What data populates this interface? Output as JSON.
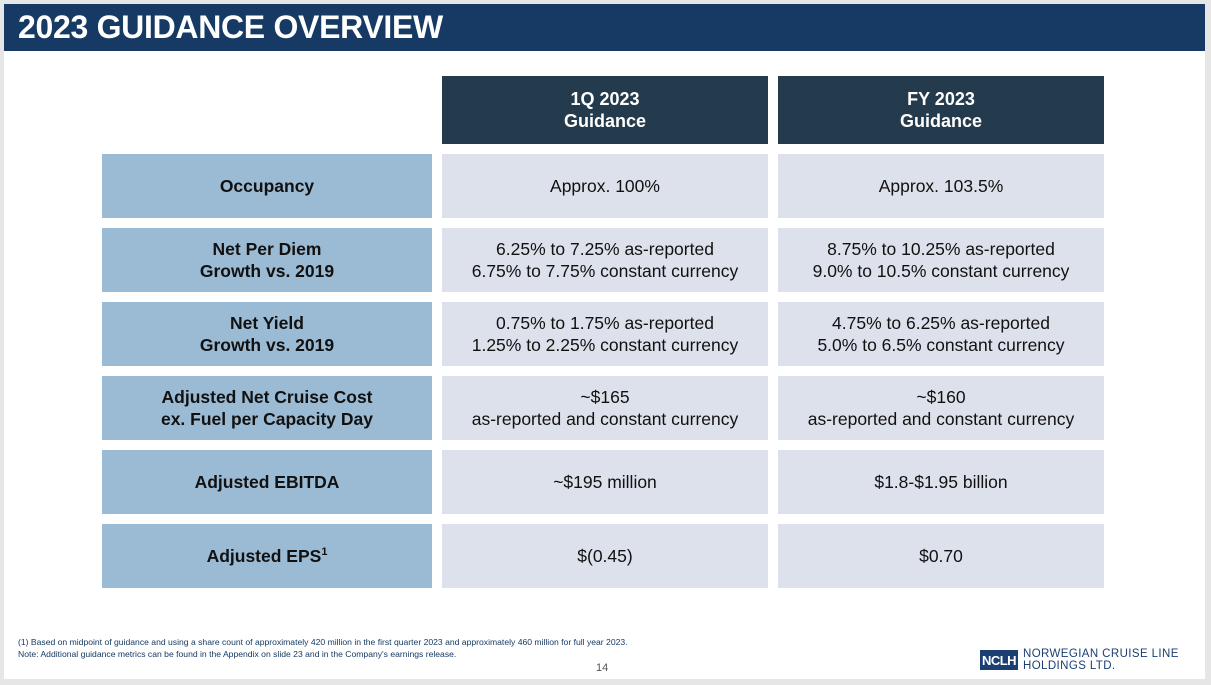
{
  "title": "2023 GUIDANCE OVERVIEW",
  "columns": [
    {
      "line1": "1Q 2023",
      "line2": "Guidance"
    },
    {
      "line1": "FY 2023",
      "line2": "Guidance"
    }
  ],
  "rows": [
    {
      "label1": "Occupancy",
      "label2": "",
      "q1_line1": "Approx. 100%",
      "q1_line2": "",
      "fy_line1": "Approx. 103.5%",
      "fy_line2": ""
    },
    {
      "label1": "Net Per Diem",
      "label2": "Growth vs. 2019",
      "q1_line1": "6.25% to 7.25% as-reported",
      "q1_line2": "6.75% to 7.75% constant currency",
      "fy_line1": "8.75% to 10.25% as-reported",
      "fy_line2": "9.0% to 10.5% constant currency"
    },
    {
      "label1": "Net Yield",
      "label2": "Growth vs. 2019",
      "q1_line1": "0.75% to 1.75% as-reported",
      "q1_line2": "1.25% to 2.25% constant currency",
      "fy_line1": "4.75% to 6.25% as-reported",
      "fy_line2": "5.0% to 6.5% constant currency"
    },
    {
      "label1": "Adjusted Net Cruise Cost",
      "label2": "ex. Fuel per Capacity Day",
      "q1_line1": "~$165",
      "q1_line2": "as-reported and constant currency",
      "fy_line1": "~$160",
      "fy_line2": "as-reported and constant currency"
    },
    {
      "label1": "Adjusted EBITDA",
      "label2": "",
      "q1_line1": "~$195 million",
      "q1_line2": "",
      "fy_line1": "$1.8-$1.95 billion",
      "fy_line2": ""
    },
    {
      "label1": "Adjusted EPS",
      "label2": "",
      "label_sup": "1",
      "q1_line1": "$(0.45)",
      "q1_line2": "",
      "fy_line1": "$0.70",
      "fy_line2": ""
    }
  ],
  "footnotes": {
    "line1": "(1) Based on midpoint of guidance and using a share count of approximately 420 million in the first quarter 2023 and approximately 460 million for full year 2023.",
    "line2": "Note: Additional guidance metrics can be found in the Appendix on slide 23 and in the Company's earnings release."
  },
  "page_number": "14",
  "logo": {
    "mark": "NCLH",
    "line1": "NORWEGIAN CRUISE LINE",
    "line2": "HOLDINGS LTD."
  }
}
